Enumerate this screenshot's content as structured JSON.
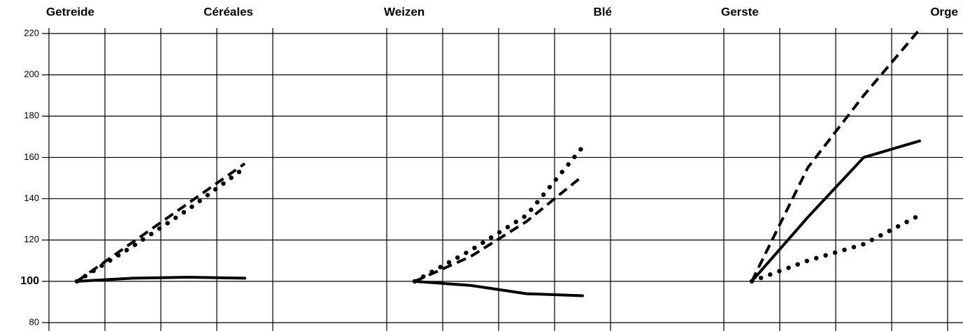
{
  "chart_data": [
    {
      "type": "line",
      "title_left": "Getreide",
      "title_right": "Céréales",
      "ylim": [
        80,
        220
      ],
      "yticks": [
        80,
        100,
        120,
        140,
        160,
        180,
        200,
        220
      ],
      "highlight_tick": 100,
      "series": [
        {
          "style": "dashed",
          "color": "#000",
          "values": [
            100,
            119,
            138,
            157
          ]
        },
        {
          "style": "dotted",
          "color": "#000",
          "values": [
            100,
            117,
            135,
            155
          ]
        },
        {
          "style": "solid",
          "color": "#000",
          "values": [
            100,
            101.5,
            102,
            101.5
          ]
        }
      ]
    },
    {
      "type": "line",
      "title_left": "Weizen",
      "title_right": "Blé",
      "ylim": [
        80,
        220
      ],
      "yticks": [
        80,
        100,
        120,
        140,
        160,
        180,
        200,
        220
      ],
      "series": [
        {
          "style": "dashed",
          "color": "#000",
          "values": [
            100,
            112,
            129,
            151
          ]
        },
        {
          "style": "dotted",
          "color": "#000",
          "values": [
            100,
            115,
            132,
            165
          ]
        },
        {
          "style": "solid",
          "color": "#000",
          "values": [
            100,
            98,
            94,
            93
          ]
        }
      ]
    },
    {
      "type": "line",
      "title_left": "Gerste",
      "title_right": "Orge",
      "ylim": [
        80,
        220
      ],
      "yticks": [
        80,
        100,
        120,
        140,
        160,
        180,
        200,
        220
      ],
      "series": [
        {
          "style": "dashed",
          "color": "#000",
          "values": [
            100,
            155,
            190,
            222
          ]
        },
        {
          "style": "dotted",
          "color": "#000",
          "values": [
            100,
            110,
            118,
            132
          ]
        },
        {
          "style": "solid",
          "color": "#000",
          "values": [
            100,
            131,
            160,
            168
          ]
        }
      ]
    }
  ]
}
